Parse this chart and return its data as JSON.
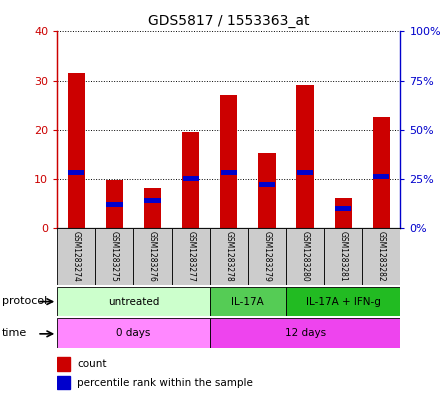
{
  "title": "GDS5817 / 1553363_at",
  "samples": [
    "GSM1283274",
    "GSM1283275",
    "GSM1283276",
    "GSM1283277",
    "GSM1283278",
    "GSM1283279",
    "GSM1283280",
    "GSM1283281",
    "GSM1283282"
  ],
  "counts": [
    31.5,
    9.8,
    8.2,
    19.5,
    27.0,
    15.2,
    29.0,
    6.0,
    22.5
  ],
  "percentiles": [
    28,
    12,
    14,
    25,
    28,
    22,
    28,
    10,
    26
  ],
  "ylim_left": [
    0,
    40
  ],
  "yticks_left": [
    0,
    10,
    20,
    30,
    40
  ],
  "ytick_labels_left": [
    "0",
    "10",
    "20",
    "30",
    "40"
  ],
  "ytick_labels_right": [
    "0%",
    "25%",
    "50%",
    "75%",
    "100%"
  ],
  "bar_color": "#cc0000",
  "percentile_color": "#0000cc",
  "bg_color": "#ffffff",
  "protocol_groups": [
    {
      "label": "untreated",
      "start": 0,
      "end": 3,
      "color": "#ccffcc"
    },
    {
      "label": "IL-17A",
      "start": 4,
      "end": 5,
      "color": "#55cc55"
    },
    {
      "label": "IL-17A + IFN-g",
      "start": 6,
      "end": 8,
      "color": "#22bb22"
    }
  ],
  "time_groups": [
    {
      "label": "0 days",
      "start": 0,
      "end": 3,
      "color": "#ff88ff"
    },
    {
      "label": "12 days",
      "start": 4,
      "end": 8,
      "color": "#ee44ee"
    }
  ],
  "protocol_label": "protocol",
  "time_label": "time",
  "legend_count": "count",
  "legend_pct": "percentile rank within the sample"
}
